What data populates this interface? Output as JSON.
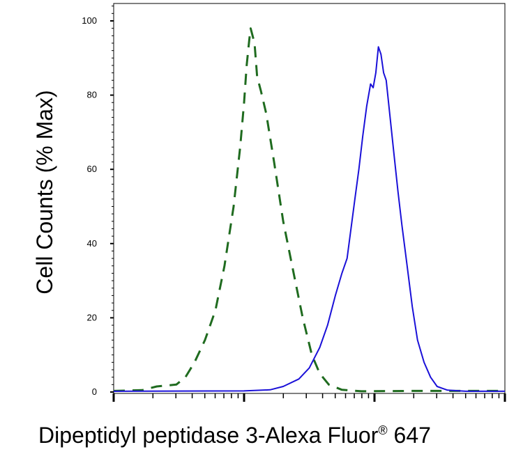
{
  "chart_data": {
    "type": "line",
    "title": "",
    "xlabel": "Dipeptidyl peptidase 3-Alexa Fluor",
    "xlabel_mark": "®",
    "xlabel_suffix": " 647",
    "ylabel": "Cell Counts (% Max)",
    "x_scale": "log",
    "xlim_decades": [
      0,
      3
    ],
    "ylim": [
      0,
      105
    ],
    "y_ticks": [
      0,
      20,
      40,
      60,
      80,
      100
    ],
    "grid": false,
    "series": [
      {
        "style": "dashed",
        "color": "#1f6b1f",
        "points": [
          [
            0.0,
            0.3
          ],
          [
            0.22,
            0.5
          ],
          [
            0.33,
            1.5
          ],
          [
            0.48,
            2.0
          ],
          [
            0.55,
            4.0
          ],
          [
            0.62,
            8.0
          ],
          [
            0.7,
            14.0
          ],
          [
            0.78,
            22.0
          ],
          [
            0.85,
            34.0
          ],
          [
            0.92,
            50.0
          ],
          [
            0.97,
            66.0
          ],
          [
            1.0,
            78.0
          ],
          [
            1.02,
            88.0
          ],
          [
            1.04,
            95.0
          ],
          [
            1.05,
            98.0
          ],
          [
            1.08,
            94.0
          ],
          [
            1.1,
            85.0
          ],
          [
            1.13,
            81.0
          ],
          [
            1.17,
            75.0
          ],
          [
            1.23,
            62.0
          ],
          [
            1.3,
            46.0
          ],
          [
            1.38,
            32.0
          ],
          [
            1.45,
            20.0
          ],
          [
            1.52,
            10.0
          ],
          [
            1.58,
            5.0
          ],
          [
            1.65,
            2.0
          ],
          [
            1.75,
            0.6
          ],
          [
            1.9,
            0.2
          ],
          [
            2.3,
            0.3
          ],
          [
            3.0,
            0.3
          ]
        ]
      },
      {
        "style": "solid",
        "color": "#1a10d8",
        "points": [
          [
            0.0,
            0.2
          ],
          [
            1.0,
            0.3
          ],
          [
            1.2,
            0.6
          ],
          [
            1.3,
            1.5
          ],
          [
            1.42,
            3.5
          ],
          [
            1.5,
            6.5
          ],
          [
            1.58,
            12.0
          ],
          [
            1.64,
            18.0
          ],
          [
            1.7,
            26.0
          ],
          [
            1.75,
            32.0
          ],
          [
            1.79,
            36.0
          ],
          [
            1.82,
            44.0
          ],
          [
            1.85,
            52.0
          ],
          [
            1.88,
            60.0
          ],
          [
            1.91,
            69.0
          ],
          [
            1.94,
            77.0
          ],
          [
            1.97,
            83.0
          ],
          [
            1.99,
            82.0
          ],
          [
            2.01,
            86.0
          ],
          [
            2.03,
            93.0
          ],
          [
            2.05,
            91.0
          ],
          [
            2.07,
            86.0
          ],
          [
            2.09,
            84.0
          ],
          [
            2.12,
            74.0
          ],
          [
            2.15,
            64.0
          ],
          [
            2.18,
            54.0
          ],
          [
            2.21,
            45.0
          ],
          [
            2.25,
            34.0
          ],
          [
            2.29,
            23.0
          ],
          [
            2.33,
            14.0
          ],
          [
            2.38,
            8.0
          ],
          [
            2.43,
            4.0
          ],
          [
            2.48,
            1.5
          ],
          [
            2.56,
            0.5
          ],
          [
            2.7,
            0.2
          ],
          [
            3.0,
            0.2
          ]
        ]
      }
    ]
  }
}
